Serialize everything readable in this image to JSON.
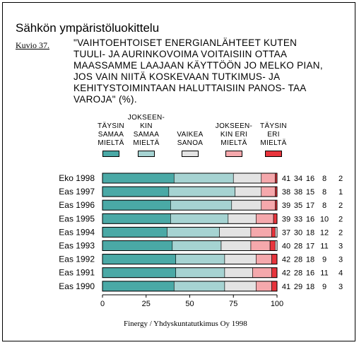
{
  "title": "Sähkön ympäristöluokittelu",
  "figure_label": "Kuvio 37.",
  "question": "\"VAIHTOEHTOISET ENERGIANLÄHTEET KUTEN TUULI- JA AURINKOVOIMA VOITAISIIN OTTAA MAASSAMME LAAJAAN KÄYTTÖÖN JO MELKO PIAN, JOS VAIN NIITÄ KOSKEVAAN TUTKIMUS- JA KEHITYSTOIMINTAAN HALUTTAISIIN PANOS- TAA VAROJA\" (%).",
  "source": "Finergy / Yhdyskuntatutkimus Oy 1998",
  "chart_data": {
    "type": "bar",
    "orientation": "horizontal",
    "stacked": true,
    "categories": [
      "Eko 1998",
      "Eas 1997",
      "Eas 1996",
      "Eas 1995",
      "Eas 1994",
      "Eas 1993",
      "Eas 1992",
      "Eas 1991",
      "Eas 1990"
    ],
    "series": [
      {
        "name": "TÄYSIN SAMAA MIELTÄ",
        "color": "#4aa9a6",
        "values": [
          41,
          38,
          39,
          39,
          37,
          40,
          42,
          42,
          41
        ]
      },
      {
        "name": "JOKSEEN- KIN SAMAA MIELTÄ",
        "color": "#a6d3d2",
        "values": [
          34,
          38,
          35,
          33,
          30,
          28,
          28,
          28,
          29
        ]
      },
      {
        "name": "VAIKEA SANOA",
        "color": "#e3e3e3",
        "values": [
          16,
          15,
          17,
          16,
          18,
          17,
          18,
          16,
          18
        ]
      },
      {
        "name": "JOKSEEN- KIN ERI MIELTÄ",
        "color": "#f5a8ac",
        "values": [
          8,
          8,
          8,
          10,
          12,
          11,
          9,
          11,
          9
        ]
      },
      {
        "name": "TÄYSIN ERI MIELTÄ",
        "color": "#e8343c",
        "values": [
          2,
          1,
          2,
          2,
          2,
          3,
          3,
          4,
          3
        ]
      }
    ],
    "xlim": [
      0,
      100
    ],
    "xticks": [
      "0",
      "25",
      "50",
      "75",
      "100"
    ],
    "legend": "top",
    "grid": false
  }
}
